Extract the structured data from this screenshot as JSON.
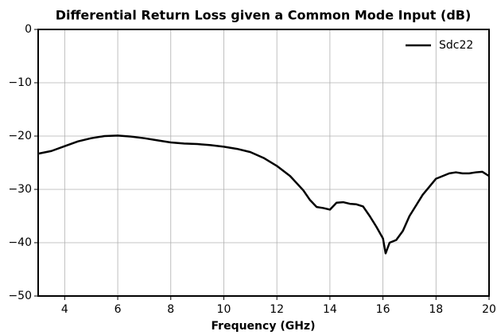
{
  "chart_data": {
    "type": "line",
    "title": "Differential Return Loss given a Common Mode Input (dB)",
    "xlabel": "Frequency (GHz)",
    "x": [
      3,
      3.5,
      4,
      4.5,
      5,
      5.5,
      6,
      6.5,
      7,
      7.5,
      8,
      8.5,
      9,
      9.5,
      10,
      10.5,
      11,
      11.5,
      12,
      12.5,
      13,
      13.25,
      13.5,
      13.75,
      14,
      14.25,
      14.5,
      14.75,
      15,
      15.25,
      15.5,
      15.75,
      16,
      16.1,
      16.25,
      16.5,
      16.75,
      17,
      17.25,
      17.5,
      17.75,
      18,
      18.25,
      18.5,
      18.75,
      19,
      19.25,
      19.5,
      19.75,
      20
    ],
    "series": [
      {
        "name": "Sdc22",
        "color": "#000000",
        "values": [
          -23.3,
          -22.8,
          -21.9,
          -21,
          -20.4,
          -20,
          -19.9,
          -20.1,
          -20.4,
          -20.8,
          -21.2,
          -21.4,
          -21.5,
          -21.7,
          -22,
          -22.4,
          -23,
          -24.1,
          -25.6,
          -27.5,
          -30.2,
          -32,
          -33.3,
          -33.5,
          -33.8,
          -32.5,
          -32.4,
          -32.7,
          -32.8,
          -33.2,
          -35,
          -37,
          -39.2,
          -42,
          -40,
          -39.5,
          -37.8,
          -35,
          -33,
          -31,
          -29.5,
          -28,
          -27.5,
          -27,
          -26.8,
          -27,
          -27,
          -26.8,
          -26.7,
          -27.5
        ]
      }
    ],
    "xlim": [
      3,
      20
    ],
    "xticks": [
      4,
      6,
      8,
      10,
      12,
      14,
      16,
      18,
      20
    ],
    "ylim": [
      -50,
      0
    ],
    "yticks": [
      {
        "value": -50,
        "label": "−50"
      },
      {
        "value": -40,
        "label": "−40"
      },
      {
        "value": -30,
        "label": "−30"
      },
      {
        "value": -20,
        "label": "−20"
      },
      {
        "value": -10,
        "label": "−10"
      },
      0
    ],
    "grid": true,
    "legend": "upper right"
  }
}
